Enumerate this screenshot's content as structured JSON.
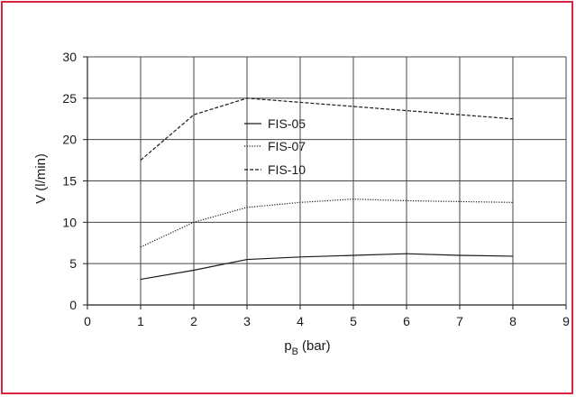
{
  "frame_color": "#d7263d",
  "chart_data": {
    "type": "line",
    "title": "",
    "xlabel_main": "p",
    "xlabel_sub": "B",
    "xlabel_unit": "(bar)",
    "ylabel": "V (l/min)",
    "xlim": [
      0,
      9
    ],
    "ylim": [
      0,
      30
    ],
    "xticks": [
      0,
      1,
      2,
      3,
      4,
      5,
      6,
      7,
      8,
      9
    ],
    "yticks": [
      0,
      5,
      10,
      15,
      20,
      25,
      30
    ],
    "grid": true,
    "legend_position": "center-left",
    "series": [
      {
        "name": "FIS-05",
        "style": "solid",
        "color": "#1a1a1a",
        "x": [
          1,
          2,
          3,
          4,
          5,
          6,
          7,
          8
        ],
        "y": [
          3.1,
          4.2,
          5.5,
          5.8,
          6.0,
          6.2,
          6.0,
          5.9
        ]
      },
      {
        "name": "FIS-07",
        "style": "dotted",
        "color": "#1a1a1a",
        "x": [
          1,
          2,
          3,
          4,
          5,
          6,
          7,
          8
        ],
        "y": [
          7.0,
          10.0,
          11.8,
          12.4,
          12.8,
          12.6,
          12.5,
          12.4
        ]
      },
      {
        "name": "FIS-10",
        "style": "dashed",
        "color": "#1a1a1a",
        "x": [
          1,
          2,
          3,
          4,
          5,
          6,
          7,
          8
        ],
        "y": [
          17.5,
          23.0,
          25.0,
          24.5,
          24.0,
          23.5,
          23.0,
          22.5
        ]
      }
    ]
  }
}
